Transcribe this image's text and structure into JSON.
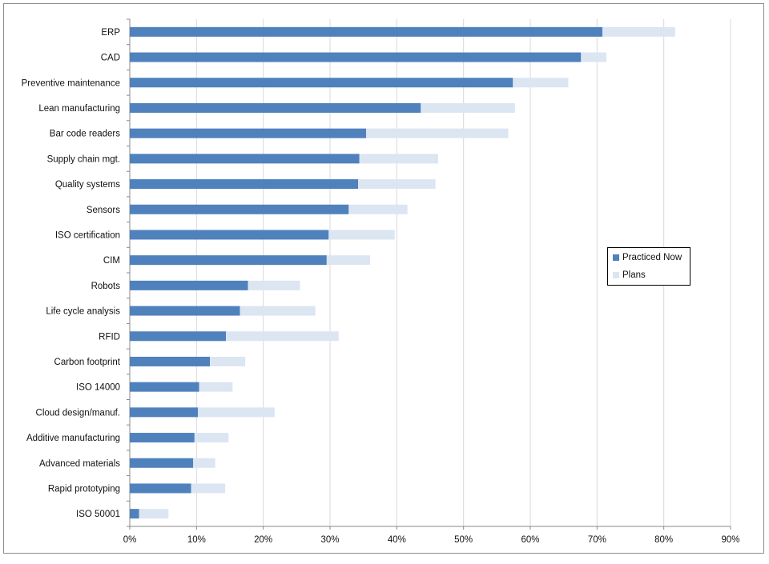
{
  "chart_data": {
    "type": "bar",
    "orientation": "horizontal",
    "stacked": true,
    "categories": [
      "ERP",
      "CAD",
      "Preventive maintenance",
      "Lean manufacturing",
      "Bar code readers",
      "Supply chain mgt.",
      "Quality systems",
      "Sensors",
      "ISO certification",
      "CIM",
      "Robots",
      "Life cycle analysis",
      "RFID",
      "Carbon footprint",
      "ISO 14000",
      "Cloud design/manuf.",
      "Additive manufacturing",
      "Advanced materials",
      "Rapid prototyping",
      "ISO 50001"
    ],
    "series": [
      {
        "name": "Practiced Now",
        "color": "#4f81bd",
        "values": [
          70.8,
          67.6,
          57.4,
          43.6,
          35.4,
          34.4,
          34.2,
          32.8,
          29.8,
          29.5,
          17.7,
          16.5,
          14.4,
          12.0,
          10.4,
          10.2,
          9.7,
          9.5,
          9.2,
          1.4
        ]
      },
      {
        "name": "Plans",
        "color": "#dce6f2",
        "values": [
          10.9,
          3.8,
          8.3,
          14.1,
          21.3,
          11.8,
          11.6,
          8.8,
          9.9,
          6.5,
          7.8,
          11.3,
          16.9,
          5.3,
          5.0,
          11.5,
          5.1,
          3.3,
          5.1,
          4.4
        ]
      }
    ],
    "x_ticks": [
      "0%",
      "10%",
      "20%",
      "30%",
      "40%",
      "50%",
      "60%",
      "70%",
      "80%",
      "90%"
    ],
    "xlim": [
      0,
      90
    ],
    "grid": true,
    "legend_position": "right"
  }
}
